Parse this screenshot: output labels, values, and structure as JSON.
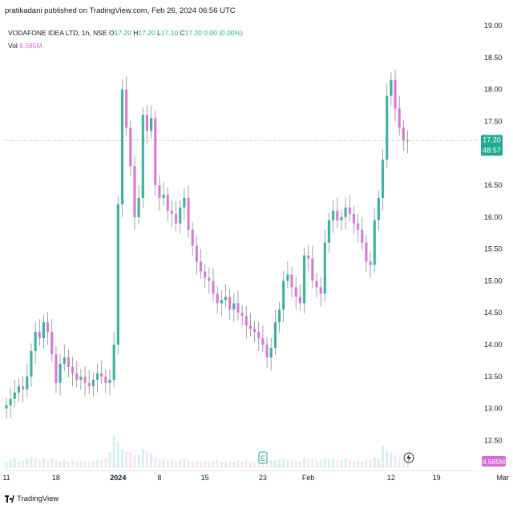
{
  "header": {
    "published": "pratikadani published on TradingView.com, Feb 26, 2024 06:56 UTC"
  },
  "legend": {
    "symbol": "VODAFONE IDEA LTD, 1h, NSE",
    "o_label": "O",
    "o_value": "17.20",
    "h_label": "H",
    "h_value": "17.20",
    "l_label": "L",
    "l_value": "17.10",
    "c_label": "C",
    "c_value": "17.20",
    "change": "0.00 (0.00%)",
    "vol_label": "Vol",
    "vol_value": "8.585M"
  },
  "footer": {
    "brand": "TradingView"
  },
  "colors": {
    "up": "#22ab94",
    "down": "#d96ad6",
    "price_badge": "#22ab94",
    "volume_badge": "#d96ad6",
    "grid_text": "#131722"
  },
  "chart_data": {
    "type": "candlestick",
    "title": "VODAFONE IDEA LTD, 1h, NSE",
    "ylim": [
      12.25,
      19.25
    ],
    "y_ticks": [
      "19.00",
      "18.50",
      "18.00",
      "17.50",
      "17.20",
      "16.50",
      "16.00",
      "15.50",
      "15.00",
      "14.50",
      "14.00",
      "13.50",
      "13.00",
      "12.50"
    ],
    "x_ticks": [
      "11",
      "18",
      "2024",
      "8",
      "15",
      "23",
      "Feb",
      "12",
      "19",
      "Mar",
      "11"
    ],
    "x_tick_index": [
      0,
      12,
      27,
      37,
      48,
      62,
      73,
      93,
      104,
      120,
      131
    ],
    "last_price": {
      "value": 17.2,
      "label": "17.20",
      "countdown": "48:57"
    },
    "last_volume_label": "8.585M",
    "closes": [
      13.05,
      13.15,
      13.25,
      13.35,
      13.3,
      13.5,
      13.9,
      14.2,
      14.1,
      14.35,
      14.2,
      13.85,
      13.4,
      13.7,
      13.8,
      13.65,
      13.55,
      13.45,
      13.5,
      13.4,
      13.35,
      13.45,
      13.55,
      13.5,
      13.4,
      13.45,
      14.0,
      16.2,
      18.0,
      17.4,
      16.8,
      16.0,
      16.3,
      17.6,
      17.35,
      17.55,
      16.5,
      16.3,
      16.35,
      16.1,
      16.05,
      15.9,
      16.15,
      16.3,
      15.8,
      15.55,
      15.3,
      15.15,
      15.05,
      15.0,
      14.8,
      14.65,
      14.7,
      14.75,
      14.55,
      14.65,
      14.5,
      14.45,
      14.3,
      14.25,
      14.2,
      14.1,
      14.0,
      13.8,
      13.95,
      14.35,
      14.55,
      15.0,
      15.1,
      14.9,
      14.75,
      14.65,
      15.4,
      15.35,
      15.0,
      14.9,
      14.8,
      15.6,
      15.95,
      16.1,
      15.95,
      16.0,
      16.15,
      16.05,
      15.9,
      15.8,
      15.6,
      15.3,
      15.25,
      15.95,
      16.3,
      16.9,
      17.9,
      18.15,
      17.7,
      17.4,
      17.2,
      17.2
    ],
    "volume": [
      0.2,
      0.25,
      0.3,
      0.2,
      0.25,
      0.3,
      0.35,
      0.3,
      0.25,
      0.3,
      0.25,
      0.3,
      0.25,
      0.2,
      0.25,
      0.2,
      0.25,
      0.2,
      0.2,
      0.2,
      0.2,
      0.2,
      0.25,
      0.25,
      0.3,
      0.5,
      1.0,
      0.8,
      0.6,
      0.5,
      0.5,
      0.4,
      0.45,
      0.6,
      0.5,
      0.45,
      0.35,
      0.3,
      0.3,
      0.25,
      0.25,
      0.2,
      0.25,
      0.3,
      0.25,
      0.2,
      0.2,
      0.2,
      0.2,
      0.2,
      0.2,
      0.25,
      0.2,
      0.2,
      0.2,
      0.2,
      0.25,
      0.2,
      0.25,
      0.2,
      0.2,
      0.25,
      0.2,
      0.3,
      0.25,
      0.25,
      0.3,
      0.3,
      0.25,
      0.25,
      0.2,
      0.2,
      0.35,
      0.3,
      0.3,
      0.25,
      0.25,
      0.3,
      0.3,
      0.3,
      0.25,
      0.25,
      0.3,
      0.25,
      0.2,
      0.25,
      0.2,
      0.25,
      0.25,
      0.35,
      0.3,
      0.7,
      0.55,
      0.5,
      0.4,
      0.35,
      0.25,
      0.25
    ]
  }
}
